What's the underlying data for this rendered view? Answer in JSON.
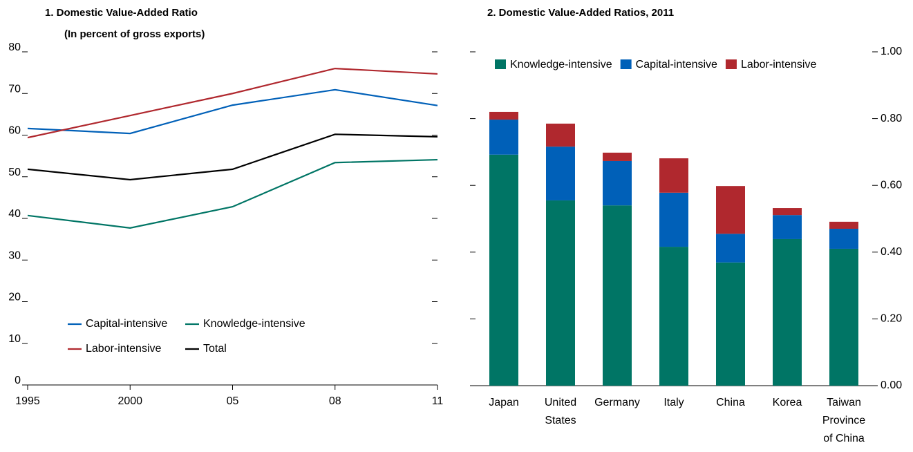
{
  "chart_data": [
    {
      "type": "line",
      "title": "1. Domestic Value-Added Ratio",
      "subtitle": "(In percent of gross exports)",
      "categories": [
        "1995",
        "2000",
        "05",
        "08",
        "11"
      ],
      "series": [
        {
          "name": "Capital-intensive",
          "color": "#0060b8",
          "values": [
            61.6,
            60.4,
            67.2,
            70.9,
            67.1
          ]
        },
        {
          "name": "Knowledge-intensive",
          "color": "#007565",
          "values": [
            40.7,
            37.7,
            42.8,
            53.4,
            54.1
          ]
        },
        {
          "name": "Labor-intensive",
          "color": "#b0282e",
          "values": [
            59.4,
            64.7,
            70.0,
            76.0,
            74.7
          ]
        },
        {
          "name": "Total",
          "color": "#000000",
          "values": [
            51.8,
            49.3,
            51.8,
            60.2,
            59.6
          ]
        }
      ],
      "ylim": [
        0,
        80
      ],
      "yticks": [
        0,
        10,
        20,
        30,
        40,
        50,
        60,
        70,
        80
      ],
      "legend": "lower left"
    },
    {
      "type": "stacked_bar",
      "title": "2. Domestic Value-Added Ratios, 2011",
      "categories": [
        "Japan",
        "United States",
        "Germany",
        "Italy",
        "China",
        "Korea",
        "Taiwan Province of China"
      ],
      "series": [
        {
          "name": "Knowledge-intensive",
          "color": "#007565",
          "values": [
            0.692,
            0.555,
            0.54,
            0.416,
            0.369,
            0.439,
            0.41
          ]
        },
        {
          "name": "Capital-intensive",
          "color": "#0060b8",
          "values": [
            0.105,
            0.161,
            0.133,
            0.162,
            0.086,
            0.072,
            0.06
          ]
        },
        {
          "name": "Labor-intensive",
          "color": "#b0282e",
          "values": [
            0.023,
            0.069,
            0.025,
            0.103,
            0.143,
            0.021,
            0.021
          ]
        }
      ],
      "ylim": [
        0,
        1.0
      ],
      "yticks": [
        {
          "value": 0,
          "label": "0.00"
        },
        {
          "value": 0.2,
          "label": "0.20"
        },
        {
          "value": 0.4,
          "label": "0.40"
        },
        {
          "value": 0.6,
          "label": "0.60"
        },
        {
          "value": 0.8,
          "label": "0.80"
        },
        {
          "value": 1.0,
          "label": "1.00"
        }
      ],
      "legend": "upper left"
    }
  ]
}
